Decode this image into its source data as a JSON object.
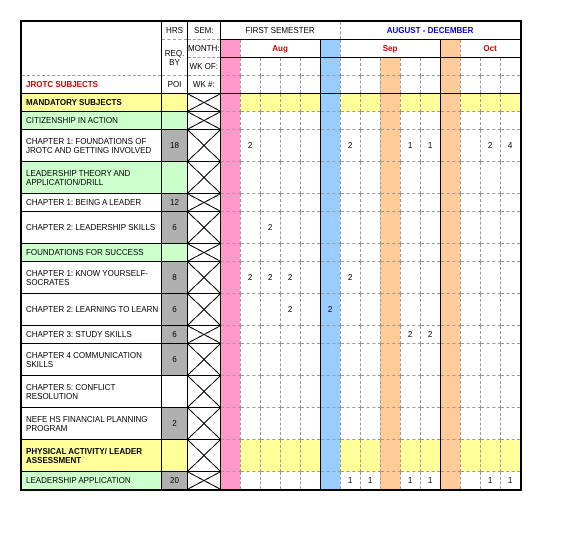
{
  "header": {
    "hrs": "HRS",
    "req_by": "REQ. BY",
    "poi": "POI",
    "subjects_title": "JROTC SUBJECTS",
    "sem": "SEM:",
    "month": "MONTH:",
    "wk_of": "WK OF:",
    "wk_num": "WK #:",
    "semester": "FIRST SEMESTER",
    "date_range": "AUGUST - DECEMBER",
    "months": [
      "Aug",
      "Sep",
      "Oct"
    ]
  },
  "colors": {
    "yellow": "#ffff99",
    "green": "#ccffcc",
    "grey": "#b0b0b0",
    "pink": "#ff99cc",
    "blue": "#99ccff",
    "orange": "#ffcc99"
  },
  "month_cols": {
    "aug": {
      "lead_color": "pink",
      "weeks": 4
    },
    "sep": {
      "lead_color": "blue",
      "weeks": 4
    },
    "oct": {
      "lead_color": "orange",
      "weeks": 4
    }
  },
  "rows": [
    {
      "label": "MANDATORY SUBJECTS",
      "hrs": "",
      "bg": "yellow",
      "bold": true,
      "vals": [
        "",
        "",
        "",
        "",
        "",
        "",
        "",
        "",
        "",
        "",
        "",
        "",
        "",
        "",
        ""
      ]
    },
    {
      "label": "CITIZENSHIP IN ACTION",
      "hrs": "",
      "bg": "green",
      "vals": [
        "",
        "",
        "",
        "",
        "",
        "",
        "",
        "",
        "",
        "",
        "",
        "",
        "",
        "",
        ""
      ]
    },
    {
      "label": "  CHAPTER 1: FOUNDATIONS OF JROTC AND GETTING INVOLVED",
      "hrs": "18",
      "bg": "white",
      "tall": true,
      "vals": [
        "",
        "2",
        "",
        "",
        "",
        "",
        "2",
        "",
        "",
        "1",
        "1",
        "",
        "",
        "2",
        "4"
      ]
    },
    {
      "label": "LEADERSHIP THEORY AND APPLICATION/DRILL",
      "hrs": "",
      "bg": "green",
      "tall": true,
      "vals": [
        "",
        "",
        "",
        "",
        "",
        "",
        "",
        "",
        "",
        "",
        "",
        "",
        "",
        "",
        ""
      ]
    },
    {
      "label": "  CHAPTER 1: BEING A LEADER",
      "hrs": "12",
      "bg": "white",
      "vals": [
        "",
        "",
        "",
        "",
        "",
        "",
        "",
        "",
        "",
        "",
        "",
        "",
        "",
        "",
        ""
      ]
    },
    {
      "label": "  CHAPTER 2: LEADERSHIP SKILLS",
      "hrs": "6",
      "bg": "white",
      "tall": true,
      "vals": [
        "",
        "",
        "2",
        "",
        "",
        "",
        "",
        "",
        "",
        "",
        "",
        "",
        "",
        "",
        ""
      ]
    },
    {
      "label": "FOUNDATIONS FOR SUCCESS",
      "hrs": "",
      "bg": "green",
      "vals": [
        "",
        "",
        "",
        "",
        "",
        "",
        "",
        "",
        "",
        "",
        "",
        "",
        "",
        "",
        ""
      ]
    },
    {
      "label": "  CHAPTER 1: KNOW YOURSELF-SOCRATES",
      "hrs": "8",
      "bg": "white",
      "tall": true,
      "vals": [
        "",
        "2",
        "2",
        "2",
        "",
        "",
        "2",
        "",
        "",
        "",
        "",
        "",
        "",
        "",
        ""
      ]
    },
    {
      "label": "  CHAPTER 2: LEARNING TO LEARN",
      "hrs": "6",
      "bg": "white",
      "tall": true,
      "vals": [
        "",
        "",
        "",
        "2",
        "",
        "2",
        "",
        "",
        "",
        "",
        "",
        "",
        "",
        "",
        ""
      ]
    },
    {
      "label": "  CHAPTER 3: STUDY SKILLS",
      "hrs": "6",
      "bg": "white",
      "vals": [
        "",
        "",
        "",
        "",
        "",
        "",
        "",
        "",
        "",
        "2",
        "2",
        "",
        "",
        "",
        ""
      ]
    },
    {
      "label": "  CHAPTER 4 COMMUNICATION SKILLS",
      "hrs": "6",
      "bg": "white",
      "tall": true,
      "vals": [
        "",
        "",
        "",
        "",
        "",
        "",
        "",
        "",
        "",
        "",
        "",
        "",
        "",
        "",
        ""
      ]
    },
    {
      "label": "  CHAPTER 5: CONFLICT RESOLUTION",
      "hrs": "",
      "bg": "white",
      "tall": true,
      "vals": [
        "",
        "",
        "",
        "",
        "",
        "",
        "",
        "",
        "",
        "",
        "",
        "",
        "",
        "",
        ""
      ]
    },
    {
      "label": "  NEFE HS FINANCIAL PLANNING PROGRAM",
      "hrs": "2",
      "bg": "white",
      "tall": true,
      "vals": [
        "",
        "",
        "",
        "",
        "",
        "",
        "",
        "",
        "",
        "",
        "",
        "",
        "",
        "",
        ""
      ]
    },
    {
      "label": "PHYSICAL ACTIVITY/ LEADER ASSESSMENT",
      "hrs": "",
      "bg": "yellow",
      "bold": true,
      "tall": true,
      "vals": [
        "",
        "",
        "",
        "",
        "",
        "",
        "",
        "",
        "",
        "",
        "",
        "",
        "",
        "",
        ""
      ]
    },
    {
      "label": "LEADERSHIP APPLICATION",
      "hrs": "20",
      "bg": "green",
      "vals": [
        "",
        "",
        "",
        "",
        "",
        "",
        "1",
        "1",
        "",
        "1",
        "1",
        "",
        "",
        "1",
        "1"
      ]
    }
  ],
  "col_colors": [
    "pink",
    "white",
    "white",
    "white",
    "white",
    "blue",
    "white",
    "white",
    "orange",
    "white",
    "white",
    "orange",
    "white",
    "white",
    "white"
  ],
  "yellow_row_col_colors": [
    "pink",
    "yellow",
    "yellow",
    "yellow",
    "yellow",
    "blue",
    "yellow",
    "yellow",
    "orange",
    "yellow",
    "yellow",
    "orange",
    "yellow",
    "yellow",
    "yellow"
  ]
}
